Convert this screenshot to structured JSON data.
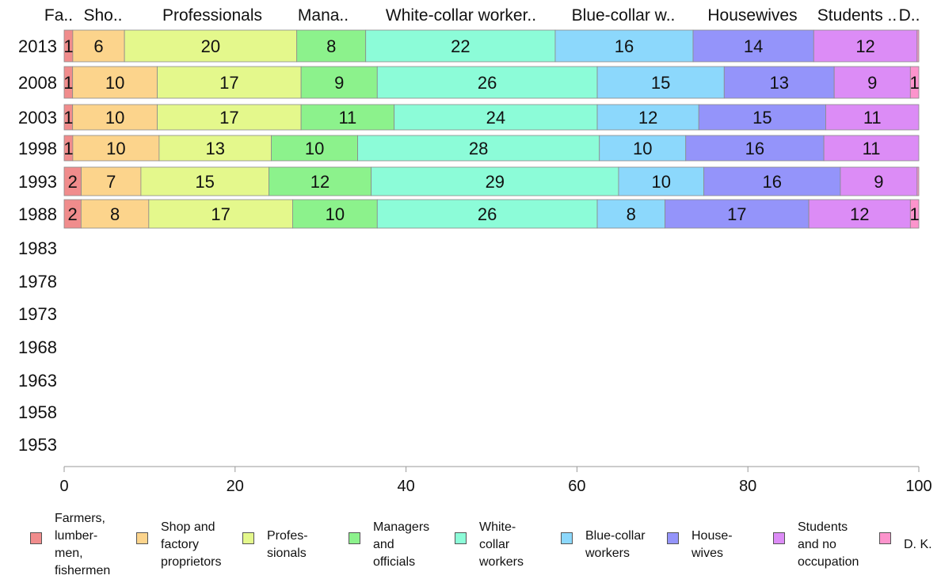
{
  "chart_data": {
    "type": "bar",
    "orientation": "horizontal",
    "stacked": true,
    "categories": [
      "2013",
      "2008",
      "2003",
      "1998",
      "1993",
      "1988",
      "1983",
      "1978",
      "1973",
      "1968",
      "1963",
      "1958",
      "1953"
    ],
    "xlim": [
      0,
      100
    ],
    "xticks": [
      "0",
      "20",
      "40",
      "60",
      "80",
      "100"
    ],
    "grid": false,
    "legend_position": "bottom",
    "top_labels": [
      "Fa..",
      "Sho..",
      "Professionals",
      "Mana..",
      "White-collar worker..",
      "Blue-collar w..",
      "Housewives",
      "Students ..",
      "D.."
    ],
    "series": [
      {
        "name": "Farmers, lumbermen, fishermen",
        "legend_label": "Farmers,\nlumber-\nmen,\nfishermen",
        "color": "#f08c8c",
        "values": [
          1,
          1,
          1,
          1,
          2,
          2,
          null,
          null,
          null,
          null,
          null,
          null,
          null
        ]
      },
      {
        "name": "Shop and factory proprietors",
        "legend_label": "Shop and\nfactory\nproprietors",
        "color": "#fcd48c",
        "values": [
          6,
          10,
          10,
          10,
          7,
          8,
          null,
          null,
          null,
          null,
          null,
          null,
          null
        ]
      },
      {
        "name": "Professionals",
        "legend_label": "Profes-\nsionals",
        "color": "#e4f88c",
        "values": [
          20,
          17,
          17,
          13,
          15,
          17,
          null,
          null,
          null,
          null,
          null,
          null,
          null
        ]
      },
      {
        "name": "Managers and officials",
        "legend_label": "Managers\nand\nofficials",
        "color": "#8cf28c",
        "values": [
          8,
          9,
          11,
          10,
          12,
          10,
          null,
          null,
          null,
          null,
          null,
          null,
          null
        ]
      },
      {
        "name": "White-collar workers",
        "legend_label": "White-\ncollar\nworkers",
        "color": "#8cfcd8",
        "values": [
          22,
          26,
          24,
          28,
          29,
          26,
          null,
          null,
          null,
          null,
          null,
          null,
          null
        ]
      },
      {
        "name": "Blue-collar workers",
        "legend_label": "Blue-collar\nworkers",
        "color": "#8cd8fc",
        "values": [
          16,
          15,
          12,
          10,
          10,
          8,
          null,
          null,
          null,
          null,
          null,
          null,
          null
        ]
      },
      {
        "name": "Housewives",
        "legend_label": "House-\nwives",
        "color": "#9494fa",
        "values": [
          14,
          13,
          15,
          16,
          16,
          17,
          null,
          null,
          null,
          null,
          null,
          null,
          null
        ]
      },
      {
        "name": "Students and no occupation",
        "legend_label": "Students\nand no\noccupation",
        "color": "#dc8cf6",
        "values": [
          12,
          9,
          11,
          11,
          9,
          12,
          null,
          null,
          null,
          null,
          null,
          null,
          null
        ]
      },
      {
        "name": "D. K.",
        "legend_label": "D. K.",
        "color": "#fc94cc",
        "values": [
          0.2,
          1,
          0,
          0,
          0.2,
          1,
          null,
          null,
          null,
          null,
          null,
          null,
          null
        ]
      }
    ],
    "data_labels": [
      [
        "1",
        "6",
        "20",
        "8",
        "22",
        "16",
        "14",
        "12",
        ""
      ],
      [
        "1",
        "10",
        "17",
        "9",
        "26",
        "15",
        "13",
        "9",
        "1"
      ],
      [
        "1",
        "10",
        "17",
        "11",
        "24",
        "12",
        "15",
        "11",
        ""
      ],
      [
        "1",
        "10",
        "13",
        "10",
        "28",
        "10",
        "16",
        "11",
        ""
      ],
      [
        "2",
        "7",
        "15",
        "12",
        "29",
        "10",
        "16",
        "9",
        ""
      ],
      [
        "2",
        "8",
        "17",
        "10",
        "26",
        "8",
        "17",
        "12",
        "1"
      ]
    ]
  }
}
